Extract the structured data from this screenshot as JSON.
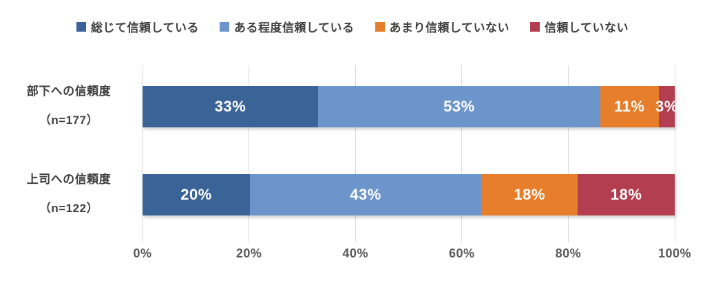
{
  "chart_data": {
    "type": "bar",
    "subtype": "horizontal-stacked-100",
    "title": "",
    "legend_position": "top",
    "grid": true,
    "xlim": [
      0,
      100
    ],
    "x_ticks": [
      "0%",
      "20%",
      "40%",
      "60%",
      "80%",
      "100%"
    ],
    "categories": [
      {
        "label": "部下への信頼度",
        "n_label": "（n=177）"
      },
      {
        "label": "上司への信頼度",
        "n_label": "（n=122）"
      }
    ],
    "series": [
      {
        "name": "総じて信頼している",
        "color": "#3a6397",
        "values": [
          33,
          20
        ]
      },
      {
        "name": "ある程度信頼している",
        "color": "#6c95cb",
        "values": [
          53,
          43
        ]
      },
      {
        "name": "あまり信頼していない",
        "color": "#e67e2b",
        "values": [
          11,
          18
        ]
      },
      {
        "name": "信頼していない",
        "color": "#b23e50",
        "values": [
          3,
          18
        ]
      }
    ],
    "data_label_suffix": "%"
  },
  "colors": {
    "grid": "#d9d9d9",
    "legend_text": "#404040",
    "category_text": "#3f3f3f",
    "axis_text": "#595959",
    "bar_label_text": "#ffffff",
    "background": "#ffffff"
  }
}
